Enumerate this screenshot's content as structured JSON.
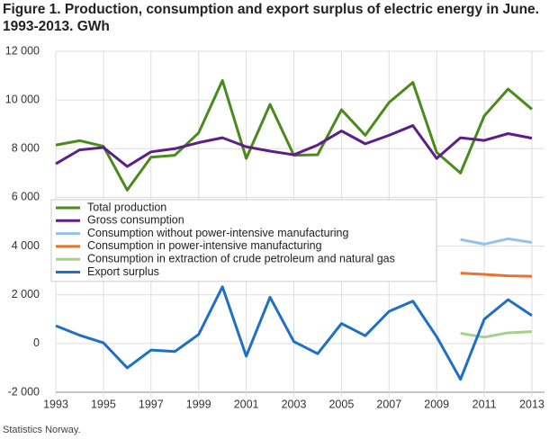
{
  "chart_data": {
    "type": "line",
    "title": [
      "Figure 1. Production, consumption and export surplus of electric energy in June.",
      "1993-2013. GWh"
    ],
    "source": "Statistics Norway.",
    "x": [
      1993,
      1994,
      1995,
      1996,
      1997,
      1998,
      1999,
      2000,
      2001,
      2002,
      2003,
      2004,
      2005,
      2006,
      2007,
      2008,
      2009,
      2010,
      2011,
      2012,
      2013
    ],
    "xlim": [
      1993,
      2013
    ],
    "xticks": [
      1993,
      1995,
      1997,
      1999,
      2001,
      2003,
      2005,
      2007,
      2009,
      2011,
      2013
    ],
    "ylim": [
      -2000,
      12000
    ],
    "yticks": [
      {
        "value": -2000,
        "label": "-2 000"
      },
      0,
      {
        "value": 2000,
        "label": "2 000"
      },
      {
        "value": 4000,
        "label": "4 000"
      },
      {
        "value": 6000,
        "label": "6 000"
      },
      {
        "value": 8000,
        "label": "8 000"
      },
      {
        "value": 10000,
        "label": "10 000"
      },
      {
        "value": 12000,
        "label": "12 000"
      }
    ],
    "grid": true,
    "series": [
      {
        "name": "Total production",
        "color": "#4a8a1c",
        "values": [
          8150,
          8330,
          8100,
          6300,
          7650,
          7730,
          8650,
          10800,
          7600,
          9820,
          7730,
          7750,
          9600,
          8550,
          9900,
          10720,
          7850,
          7000,
          9350,
          10450,
          9620
        ]
      },
      {
        "name": "Gross consumption",
        "color": "#5c1f86",
        "values": [
          7380,
          7950,
          8050,
          7270,
          7870,
          8000,
          8250,
          8450,
          8080,
          7900,
          7750,
          8150,
          8730,
          8200,
          8550,
          8950,
          7600,
          8450,
          8340,
          8620,
          8430
        ]
      },
      {
        "name": "Consumption without power-intensive manufacturing",
        "color": "#93c3ea",
        "values": [
          null,
          null,
          null,
          null,
          null,
          null,
          null,
          null,
          null,
          null,
          null,
          null,
          null,
          null,
          null,
          null,
          null,
          4270,
          4080,
          4300,
          4150
        ]
      },
      {
        "name": "Consumption in power-intensive manufacturing",
        "color": "#e8732c",
        "values": [
          null,
          null,
          null,
          null,
          null,
          null,
          null,
          null,
          null,
          null,
          null,
          null,
          null,
          null,
          null,
          null,
          null,
          2890,
          2840,
          2780,
          2760
        ]
      },
      {
        "name": "Consumption in extraction of crude petroleum and natural gas",
        "color": "#a7d08a",
        "values": [
          null,
          null,
          null,
          null,
          null,
          null,
          null,
          null,
          null,
          null,
          null,
          null,
          null,
          null,
          null,
          null,
          null,
          420,
          260,
          440,
          490
        ]
      },
      {
        "name": "Export surplus",
        "color": "#1f6fc4",
        "values": [
          730,
          340,
          30,
          -1000,
          -270,
          -330,
          370,
          2330,
          -520,
          1900,
          80,
          -420,
          820,
          320,
          1320,
          1740,
          280,
          -1470,
          1000,
          1800,
          1150
        ]
      }
    ]
  }
}
